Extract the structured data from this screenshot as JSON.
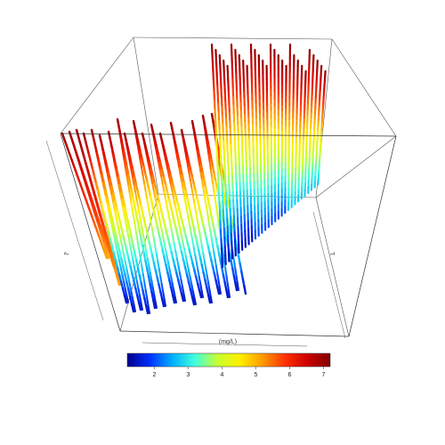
{
  "chart_data": {
    "type": "3d-line",
    "x_label": "(mg/L)",
    "y_label": "T",
    "z_label": "T",
    "color_scale": {
      "min": 1.2,
      "max": 7.2,
      "ticks": [
        2,
        3,
        4,
        5,
        6,
        7
      ],
      "tick_labels": [
        "2",
        "3",
        "4",
        "5",
        "6",
        "7"
      ],
      "colors": [
        "#00008b",
        "#0030ff",
        "#00b0ff",
        "#40ffe0",
        "#c8ff30",
        "#ffee00",
        "#ff9a00",
        "#ff3000",
        "#cc0000",
        "#7f0000"
      ]
    },
    "box": "wireframe"
  }
}
